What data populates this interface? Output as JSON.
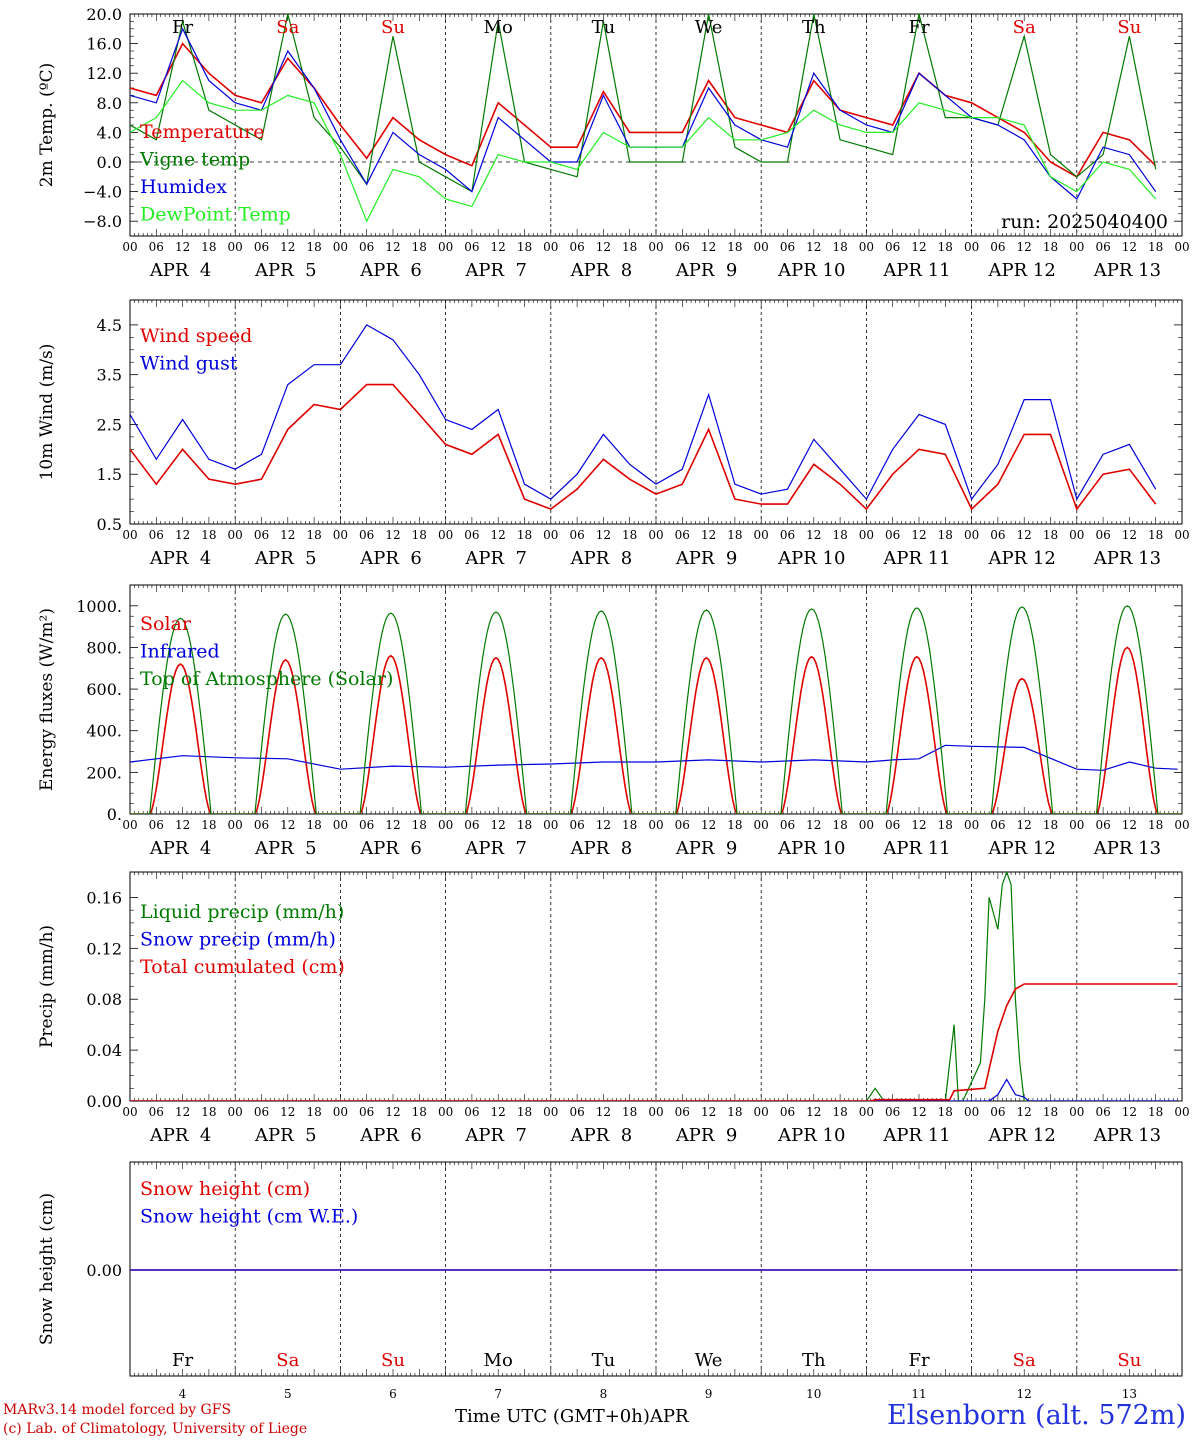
{
  "run_label": "run: 2025040400",
  "credits": {
    "model": "MARv3.14 model forced by GFS",
    "lab": "(c) Lab. of Climatology, University of Liege"
  },
  "x_axis_title": "Time UTC (GMT+0h)",
  "month_label": "APR",
  "station": "Elsenborn (alt. 572m)",
  "colors": {
    "red": "#e00000",
    "green": "#007a00",
    "blue": "#0000dd",
    "lightgreen": "#22ee22",
    "weekend": "#e00000",
    "weekday": "#000000"
  },
  "hour_ticks": [
    "00",
    "06",
    "12",
    "18"
  ],
  "days": [
    {
      "dom": "4",
      "date": "APR  4",
      "wd": "Fr",
      "weekend": false
    },
    {
      "dom": "5",
      "date": "APR  5",
      "wd": "Sa",
      "weekend": true
    },
    {
      "dom": "6",
      "date": "APR  6",
      "wd": "Su",
      "weekend": true
    },
    {
      "dom": "7",
      "date": "APR  7",
      "wd": "Mo",
      "weekend": false
    },
    {
      "dom": "8",
      "date": "APR  8",
      "wd": "Tu",
      "weekend": false
    },
    {
      "dom": "9",
      "date": "APR  9",
      "wd": "We",
      "weekend": false
    },
    {
      "dom": "10",
      "date": "APR 10",
      "wd": "Th",
      "weekend": false
    },
    {
      "dom": "11",
      "date": "APR 11",
      "wd": "Fr",
      "weekend": false
    },
    {
      "dom": "12",
      "date": "APR 12",
      "wd": "Sa",
      "weekend": true
    },
    {
      "dom": "13",
      "date": "APR 13",
      "wd": "Su",
      "weekend": true
    }
  ],
  "chart_data": [
    {
      "type": "line",
      "ylabel": "2m Temp. (ºC)",
      "ylim": [
        -10,
        20
      ],
      "yticks": [
        -8,
        -4,
        0,
        4,
        8,
        12,
        16,
        20
      ],
      "ytick_labels": [
        "−8.0",
        "−4.0",
        "0.0",
        "4.0",
        "8.0",
        "12.0",
        "16.0",
        "20.0"
      ],
      "zero_line": true,
      "x_unit": "hours since APR 4 00 UTC",
      "series": [
        {
          "name": "Temperature",
          "color": "red",
          "x": [
            0,
            6,
            12,
            18,
            24,
            30,
            36,
            42,
            48,
            54,
            60,
            66,
            72,
            78,
            84,
            90,
            96,
            102,
            108,
            114,
            120,
            126,
            132,
            138,
            144,
            150,
            156,
            162,
            168,
            174,
            180,
            186,
            192,
            198,
            204,
            210,
            216,
            222,
            228,
            234
          ],
          "values": [
            10,
            9,
            16,
            12,
            9,
            8,
            14,
            10,
            5,
            0.5,
            6,
            3,
            1,
            -0.5,
            8,
            5,
            2,
            2,
            9.5,
            4,
            4,
            4,
            11,
            6,
            5,
            4,
            11,
            7,
            6,
            5,
            12,
            9,
            8,
            6,
            4,
            0,
            -2,
            4,
            3,
            -0.5
          ]
        },
        {
          "name": "Vigne temp",
          "color": "green",
          "x": [
            0,
            6,
            12,
            18,
            24,
            30,
            36,
            42,
            48,
            54,
            60,
            66,
            72,
            78,
            84,
            90,
            96,
            102,
            108,
            114,
            120,
            126,
            132,
            138,
            144,
            150,
            156,
            162,
            168,
            174,
            180,
            186,
            192,
            198,
            204,
            210,
            216,
            222,
            228,
            234
          ],
          "values": [
            5,
            3,
            19,
            7,
            5,
            3,
            20,
            6,
            2,
            -3,
            17,
            0,
            -2,
            -4,
            19,
            0,
            -1,
            -2,
            19,
            0,
            0,
            0,
            20,
            2,
            0,
            0,
            20,
            3,
            2,
            1,
            20,
            6,
            6,
            5,
            17,
            1,
            -2,
            1,
            17,
            -1
          ]
        },
        {
          "name": "Humidex",
          "color": "blue",
          "x": [
            0,
            6,
            12,
            18,
            24,
            30,
            36,
            42,
            48,
            54,
            60,
            66,
            72,
            78,
            84,
            90,
            96,
            102,
            108,
            114,
            120,
            126,
            132,
            138,
            144,
            150,
            156,
            162,
            168,
            174,
            180,
            186,
            192,
            198,
            204,
            210,
            216,
            222,
            228,
            234
          ],
          "values": [
            9,
            8,
            18,
            11,
            8,
            7,
            15,
            10,
            3,
            -3,
            4,
            1,
            -1,
            -4,
            6,
            3,
            0,
            0,
            9,
            2,
            2,
            2,
            10,
            5,
            3,
            2,
            12,
            7,
            5,
            4,
            12,
            9,
            6,
            5,
            3,
            -2,
            -5,
            2,
            1,
            -4
          ]
        },
        {
          "name": "DewPoint Temp",
          "color": "lightgreen",
          "x": [
            0,
            6,
            12,
            18,
            24,
            30,
            36,
            42,
            48,
            54,
            60,
            66,
            72,
            78,
            84,
            90,
            96,
            102,
            108,
            114,
            120,
            126,
            132,
            138,
            144,
            150,
            156,
            162,
            168,
            174,
            180,
            186,
            192,
            198,
            204,
            210,
            216,
            222,
            228,
            234
          ],
          "values": [
            4,
            6,
            11,
            8,
            7,
            7,
            9,
            8,
            1,
            -8,
            -1,
            -2,
            -5,
            -6,
            1,
            0,
            0,
            -1,
            4,
            2,
            2,
            2,
            6,
            3,
            3,
            4,
            7,
            5,
            4,
            4,
            8,
            7,
            6,
            6,
            5,
            -2,
            -4,
            0,
            -1,
            -5
          ]
        }
      ]
    },
    {
      "type": "line",
      "ylabel": "10m Wind (m/s)",
      "ylim": [
        0.5,
        5.0
      ],
      "yticks": [
        0.5,
        1.5,
        2.5,
        3.5,
        4.5
      ],
      "ytick_labels": [
        "0.5",
        "1.5",
        "2.5",
        "3.5",
        "4.5"
      ],
      "x_unit": "hours since APR 4 00 UTC",
      "series": [
        {
          "name": "Wind speed",
          "color": "red",
          "x": [
            0,
            6,
            12,
            18,
            24,
            30,
            36,
            42,
            48,
            54,
            60,
            66,
            72,
            78,
            84,
            90,
            96,
            102,
            108,
            114,
            120,
            126,
            132,
            138,
            144,
            150,
            156,
            162,
            168,
            174,
            180,
            186,
            192,
            198,
            204,
            210,
            216,
            222,
            228,
            234
          ],
          "values": [
            2.0,
            1.3,
            2.0,
            1.4,
            1.3,
            1.4,
            2.4,
            2.9,
            2.8,
            3.3,
            3.3,
            2.7,
            2.1,
            1.9,
            2.3,
            1.0,
            0.8,
            1.2,
            1.8,
            1.4,
            1.1,
            1.3,
            2.4,
            1.0,
            0.9,
            0.9,
            1.7,
            1.3,
            0.8,
            1.5,
            2.0,
            1.9,
            0.8,
            1.3,
            2.3,
            2.3,
            0.8,
            1.5,
            1.6,
            0.9
          ]
        },
        {
          "name": "Wind gust",
          "color": "blue",
          "x": [
            0,
            6,
            12,
            18,
            24,
            30,
            36,
            42,
            48,
            54,
            60,
            66,
            72,
            78,
            84,
            90,
            96,
            102,
            108,
            114,
            120,
            126,
            132,
            138,
            144,
            150,
            156,
            162,
            168,
            174,
            180,
            186,
            192,
            198,
            204,
            210,
            216,
            222,
            228,
            234
          ],
          "values": [
            2.7,
            1.8,
            2.6,
            1.8,
            1.6,
            1.9,
            3.3,
            3.7,
            3.7,
            4.5,
            4.2,
            3.5,
            2.6,
            2.4,
            2.8,
            1.3,
            1.0,
            1.5,
            2.3,
            1.7,
            1.3,
            1.6,
            3.1,
            1.3,
            1.1,
            1.2,
            2.2,
            1.6,
            1.0,
            2.0,
            2.7,
            2.5,
            1.0,
            1.7,
            3.0,
            3.0,
            1.0,
            1.9,
            2.1,
            1.2
          ]
        }
      ]
    },
    {
      "type": "line",
      "ylabel": "Energy fluxes (W/m²)",
      "ylim": [
        0,
        1100
      ],
      "yticks": [
        0,
        200,
        400,
        600,
        800,
        1000
      ],
      "ytick_labels": [
        "0.",
        "200.",
        "400.",
        "600.",
        "800.",
        "1000."
      ],
      "x_unit": "hours since APR 4 00 UTC",
      "daylight_hours": [
        4.5,
        18.5
      ],
      "series": [
        {
          "name": "Solar",
          "color": "red",
          "peak_hour": 12,
          "daily_peak": [
            720,
            740,
            760,
            750,
            750,
            750,
            755,
            755,
            650,
            800
          ]
        },
        {
          "name": "Infrared",
          "color": "blue",
          "x": [
            0,
            12,
            24,
            36,
            48,
            60,
            72,
            84,
            96,
            108,
            120,
            132,
            144,
            156,
            168,
            174,
            180,
            186,
            192,
            204,
            216,
            222,
            228,
            234,
            239
          ],
          "values": [
            250,
            280,
            270,
            265,
            215,
            230,
            225,
            235,
            240,
            250,
            250,
            260,
            250,
            260,
            250,
            260,
            265,
            330,
            325,
            320,
            215,
            210,
            250,
            220,
            215
          ]
        },
        {
          "name": "Top of Atmosphere (Solar)",
          "color": "green",
          "peak_hour": 12,
          "daily_peak": [
            940,
            960,
            965,
            970,
            975,
            980,
            985,
            990,
            995,
            1000
          ]
        }
      ]
    },
    {
      "type": "line",
      "ylabel": "Precip (mm/h)",
      "ylim": [
        0,
        0.18
      ],
      "yticks": [
        0,
        0.04,
        0.08,
        0.12,
        0.16
      ],
      "ytick_labels": [
        "0.00",
        "0.04",
        "0.08",
        "0.12",
        "0.16"
      ],
      "x_unit": "hours since APR 4 00 UTC",
      "series": [
        {
          "name": "Liquid precip (mm/h)",
          "color": "green",
          "x": [
            0,
            168,
            170,
            172,
            174,
            186,
            188,
            189,
            190,
            194,
            195,
            196,
            198,
            199,
            200,
            201,
            202,
            203,
            204,
            206,
            208,
            239
          ],
          "values": [
            0,
            0,
            0.01,
            0,
            0,
            0,
            0.06,
            0,
            0,
            0.03,
            0.08,
            0.16,
            0.135,
            0.17,
            0.18,
            0.17,
            0.08,
            0.03,
            0,
            0,
            0,
            0
          ]
        },
        {
          "name": "Snow precip (mm/h)",
          "color": "blue",
          "x": [
            0,
            196,
            198,
            200,
            202,
            204,
            205,
            206,
            239
          ],
          "values": [
            0,
            0,
            0.005,
            0.017,
            0.005,
            0.003,
            0,
            0,
            0
          ]
        },
        {
          "name": "Total cumulated (cm)",
          "color": "red",
          "x": [
            0,
            169,
            170,
            187,
            188,
            195,
            196,
            198,
            200,
            202,
            204,
            206,
            239
          ],
          "values": [
            0,
            0,
            0.001,
            0.001,
            0.008,
            0.01,
            0.025,
            0.055,
            0.075,
            0.088,
            0.092,
            0.092,
            0.092
          ]
        }
      ]
    },
    {
      "type": "line",
      "ylabel": "Snow height (cm)",
      "yticks": [
        0
      ],
      "ytick_labels": [
        "0.00"
      ],
      "x_unit": "hours since APR 4 00 UTC",
      "series": [
        {
          "name": "Snow height (cm)",
          "color": "red",
          "x": [
            0,
            239
          ],
          "values": [
            0,
            0
          ]
        },
        {
          "name": "Snow height (cm W.E.)",
          "color": "blue",
          "x": [
            0,
            239
          ],
          "values": [
            0,
            0
          ]
        }
      ]
    }
  ]
}
